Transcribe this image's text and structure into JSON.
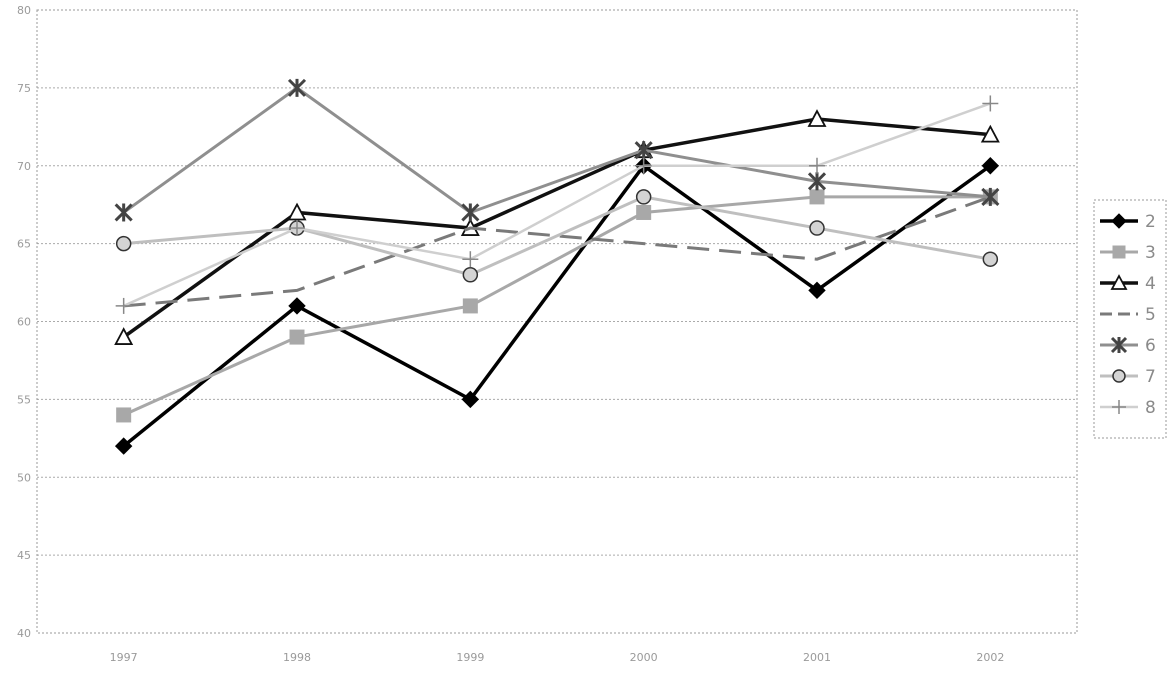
{
  "chart_data": {
    "type": "line",
    "title": "",
    "xlabel": "",
    "ylabel": "",
    "categories": [
      "1997",
      "1998",
      "1999",
      "2000",
      "2001",
      "2002"
    ],
    "ylim": [
      40,
      80
    ],
    "yticks": [
      "40",
      "45",
      "50",
      "55",
      "60",
      "65",
      "70",
      "75",
      "80"
    ],
    "grid": "horizontal dotted",
    "legend_position": "right",
    "series": [
      {
        "name": "2",
        "values": [
          52,
          61,
          55,
          70,
          62,
          70
        ],
        "color": "#000000",
        "marker": "diamond",
        "dash": "solid"
      },
      {
        "name": "3",
        "values": [
          54,
          59,
          61,
          67,
          68,
          68
        ],
        "color": "#a8a8a8",
        "marker": "square",
        "dash": "solid"
      },
      {
        "name": "4",
        "values": [
          59,
          67,
          66,
          71,
          73,
          72
        ],
        "color": "#111111",
        "marker": "triangle",
        "dash": "solid"
      },
      {
        "name": "5",
        "values": [
          61,
          62,
          66,
          65,
          64,
          68
        ],
        "color": "#7a7a7a",
        "marker": "none",
        "dash": "dashed"
      },
      {
        "name": "6",
        "values": [
          67,
          75,
          67,
          71,
          69,
          68
        ],
        "color": "#8f8f8f",
        "marker": "asterisk",
        "dash": "solid"
      },
      {
        "name": "7",
        "values": [
          65,
          66,
          63,
          68,
          66,
          64
        ],
        "color": "#bfbfbf",
        "marker": "circle",
        "dash": "solid"
      },
      {
        "name": "8",
        "values": [
          61,
          66,
          64,
          70,
          70,
          74
        ],
        "color": "#cfcfcf",
        "marker": "plus",
        "dash": "solid"
      }
    ]
  }
}
